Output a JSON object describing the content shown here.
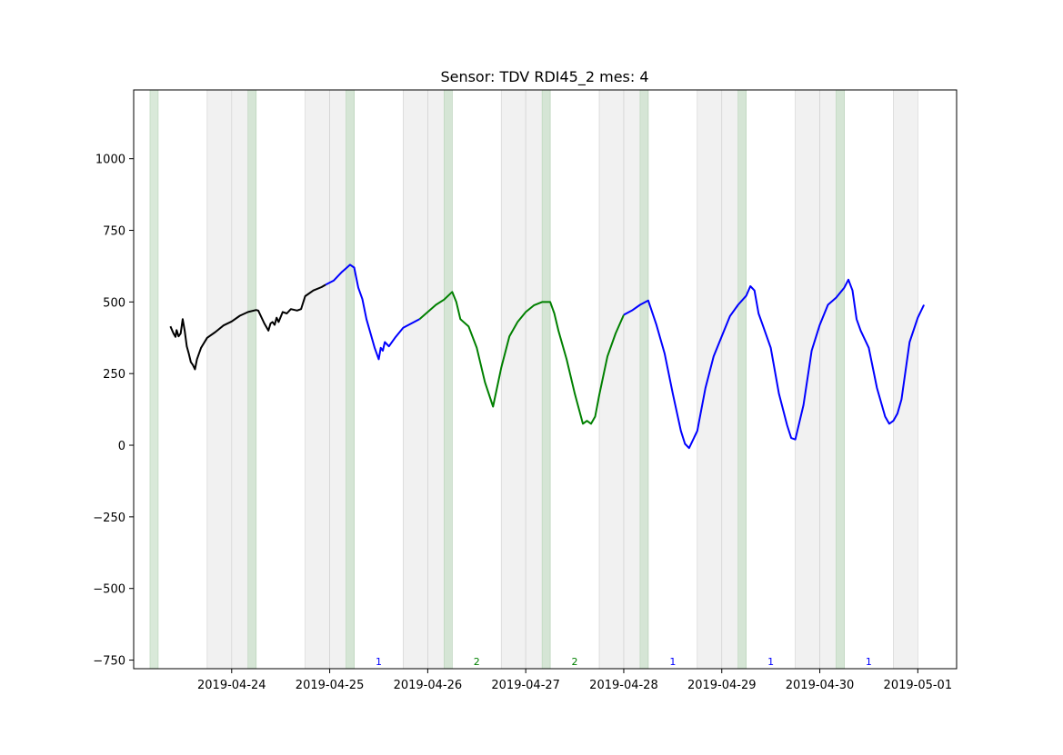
{
  "chart_data": {
    "type": "line",
    "title": "Sensor: TDV RDI45_2 mes: 4",
    "xlabel": "",
    "ylabel": "",
    "xlim": [
      "2019-04-23 00:00",
      "2019-05-01 09:30"
    ],
    "ylim": [
      -780,
      1240
    ],
    "x_ticks": [
      "2019-04-24",
      "2019-04-25",
      "2019-04-26",
      "2019-04-27",
      "2019-04-28",
      "2019-04-29",
      "2019-04-30",
      "2019-05-01"
    ],
    "y_ticks": [
      -750,
      -500,
      -250,
      0,
      250,
      500,
      750,
      1000
    ],
    "grid": false,
    "legend": "none",
    "colors": {
      "unlabeled": "#000000",
      "class_1": "#0000ff",
      "class_2": "#008000",
      "grey_band": "#e6e6e6",
      "green_band": "#c9dfc9"
    },
    "grey_bands": [
      [
        "2019-04-23 18:00",
        "2019-04-24 00:00"
      ],
      [
        "2019-04-24 00:00",
        "2019-04-24 06:00"
      ],
      [
        "2019-04-24 18:00",
        "2019-04-25 00:00"
      ],
      [
        "2019-04-25 00:00",
        "2019-04-25 06:00"
      ],
      [
        "2019-04-25 18:00",
        "2019-04-26 00:00"
      ],
      [
        "2019-04-26 00:00",
        "2019-04-26 06:00"
      ],
      [
        "2019-04-26 18:00",
        "2019-04-27 00:00"
      ],
      [
        "2019-04-27 00:00",
        "2019-04-27 06:00"
      ],
      [
        "2019-04-27 18:00",
        "2019-04-28 00:00"
      ],
      [
        "2019-04-28 00:00",
        "2019-04-28 06:00"
      ],
      [
        "2019-04-28 18:00",
        "2019-04-29 00:00"
      ],
      [
        "2019-04-29 00:00",
        "2019-04-29 06:00"
      ],
      [
        "2019-04-29 18:00",
        "2019-04-30 00:00"
      ],
      [
        "2019-04-30 00:00",
        "2019-04-30 06:00"
      ],
      [
        "2019-04-30 18:00",
        "2019-05-01 00:00"
      ]
    ],
    "green_bands": [
      [
        "2019-04-23 04:00",
        "2019-04-23 06:00"
      ],
      [
        "2019-04-24 04:00",
        "2019-04-24 06:00"
      ],
      [
        "2019-04-25 04:00",
        "2019-04-25 06:00"
      ],
      [
        "2019-04-26 04:00",
        "2019-04-26 06:00"
      ],
      [
        "2019-04-27 04:00",
        "2019-04-27 06:00"
      ],
      [
        "2019-04-28 04:00",
        "2019-04-28 06:00"
      ],
      [
        "2019-04-29 04:00",
        "2019-04-29 06:00"
      ],
      [
        "2019-04-30 04:00",
        "2019-04-30 06:00"
      ]
    ],
    "day_labels": [
      {
        "x": "2019-04-25 12:00",
        "text": "1",
        "class": "class_1"
      },
      {
        "x": "2019-04-26 12:00",
        "text": "2",
        "class": "class_2"
      },
      {
        "x": "2019-04-27 12:00",
        "text": "2",
        "class": "class_2"
      },
      {
        "x": "2019-04-28 12:00",
        "text": "1",
        "class": "class_1"
      },
      {
        "x": "2019-04-29 12:00",
        "text": "1",
        "class": "class_1"
      },
      {
        "x": "2019-04-30 12:00",
        "text": "1",
        "class": "class_1"
      }
    ],
    "series": [
      {
        "class": "unlabeled",
        "points": [
          [
            "2019-04-23 09:00",
            415
          ],
          [
            "2019-04-23 09:45",
            390
          ],
          [
            "2019-04-23 10:15",
            378
          ],
          [
            "2019-04-23 10:30",
            402
          ],
          [
            "2019-04-23 11:00",
            380
          ],
          [
            "2019-04-23 11:30",
            390
          ],
          [
            "2019-04-23 12:00",
            440
          ],
          [
            "2019-04-23 12:30",
            400
          ],
          [
            "2019-04-23 13:00",
            345
          ],
          [
            "2019-04-23 13:30",
            320
          ],
          [
            "2019-04-23 14:00",
            290
          ],
          [
            "2019-04-23 14:30",
            280
          ],
          [
            "2019-04-23 15:00",
            265
          ],
          [
            "2019-04-23 15:30",
            300
          ],
          [
            "2019-04-23 16:30",
            340
          ],
          [
            "2019-04-23 18:00",
            375
          ],
          [
            "2019-04-23 20:00",
            395
          ],
          [
            "2019-04-23 22:00",
            418
          ],
          [
            "2019-04-24 00:00",
            432
          ],
          [
            "2019-04-24 02:00",
            452
          ],
          [
            "2019-04-24 04:00",
            465
          ],
          [
            "2019-04-24 06:00",
            472
          ],
          [
            "2019-04-24 06:30",
            470
          ],
          [
            "2019-04-24 07:00",
            455
          ],
          [
            "2019-04-24 08:00",
            425
          ],
          [
            "2019-04-24 09:00",
            400
          ],
          [
            "2019-04-24 09:30",
            425
          ],
          [
            "2019-04-24 10:00",
            430
          ],
          [
            "2019-04-24 10:30",
            420
          ],
          [
            "2019-04-24 11:00",
            445
          ],
          [
            "2019-04-24 11:30",
            430
          ],
          [
            "2019-04-24 12:30",
            465
          ],
          [
            "2019-04-24 13:30",
            460
          ],
          [
            "2019-04-24 14:30",
            475
          ],
          [
            "2019-04-24 16:00",
            470
          ],
          [
            "2019-04-24 17:00",
            475
          ],
          [
            "2019-04-24 18:00",
            520
          ],
          [
            "2019-04-24 20:00",
            540
          ],
          [
            "2019-04-24 22:00",
            552
          ],
          [
            "2019-04-24 23:00",
            560
          ]
        ]
      },
      {
        "class": "class_1",
        "points": [
          [
            "2019-04-24 23:00",
            560
          ],
          [
            "2019-04-25 01:00",
            575
          ],
          [
            "2019-04-25 03:00",
            605
          ],
          [
            "2019-04-25 05:00",
            630
          ],
          [
            "2019-04-25 06:00",
            620
          ],
          [
            "2019-04-25 07:00",
            550
          ],
          [
            "2019-04-25 08:00",
            510
          ],
          [
            "2019-04-25 09:00",
            440
          ],
          [
            "2019-04-25 10:00",
            390
          ],
          [
            "2019-04-25 11:00",
            340
          ],
          [
            "2019-04-25 12:00",
            300
          ],
          [
            "2019-04-25 12:30",
            340
          ],
          [
            "2019-04-25 13:00",
            330
          ],
          [
            "2019-04-25 13:30",
            360
          ],
          [
            "2019-04-25 14:30",
            345
          ],
          [
            "2019-04-25 16:00",
            375
          ],
          [
            "2019-04-25 18:00",
            410
          ],
          [
            "2019-04-25 20:00",
            425
          ],
          [
            "2019-04-25 22:00",
            440
          ]
        ]
      },
      {
        "class": "class_2",
        "points": [
          [
            "2019-04-25 22:00",
            440
          ],
          [
            "2019-04-26 00:00",
            465
          ],
          [
            "2019-04-26 02:00",
            490
          ],
          [
            "2019-04-26 04:00",
            508
          ],
          [
            "2019-04-26 06:00",
            535
          ],
          [
            "2019-04-26 07:00",
            500
          ],
          [
            "2019-04-26 08:00",
            440
          ],
          [
            "2019-04-26 10:00",
            415
          ],
          [
            "2019-04-26 12:00",
            340
          ],
          [
            "2019-04-26 14:00",
            220
          ],
          [
            "2019-04-26 16:00",
            135
          ],
          [
            "2019-04-26 18:00",
            270
          ],
          [
            "2019-04-26 20:00",
            380
          ],
          [
            "2019-04-26 22:00",
            430
          ],
          [
            "2019-04-27 00:00",
            465
          ],
          [
            "2019-04-27 02:00",
            488
          ],
          [
            "2019-04-27 04:00",
            500
          ],
          [
            "2019-04-27 06:00",
            500
          ],
          [
            "2019-04-27 07:00",
            460
          ],
          [
            "2019-04-27 08:00",
            400
          ],
          [
            "2019-04-27 10:00",
            300
          ],
          [
            "2019-04-27 12:00",
            180
          ],
          [
            "2019-04-27 14:00",
            75
          ],
          [
            "2019-04-27 15:00",
            85
          ],
          [
            "2019-04-27 16:00",
            75
          ],
          [
            "2019-04-27 17:00",
            100
          ],
          [
            "2019-04-27 18:00",
            175
          ],
          [
            "2019-04-27 20:00",
            310
          ],
          [
            "2019-04-27 22:00",
            390
          ],
          [
            "2019-04-28 00:00",
            455
          ]
        ]
      },
      {
        "class": "class_1",
        "points": [
          [
            "2019-04-28 00:00",
            455
          ],
          [
            "2019-04-28 02:00",
            470
          ],
          [
            "2019-04-28 04:00",
            490
          ],
          [
            "2019-04-28 06:00",
            505
          ],
          [
            "2019-04-28 08:00",
            420
          ],
          [
            "2019-04-28 10:00",
            320
          ],
          [
            "2019-04-28 12:00",
            180
          ],
          [
            "2019-04-28 14:00",
            50
          ],
          [
            "2019-04-28 15:00",
            5
          ],
          [
            "2019-04-28 16:00",
            -10
          ],
          [
            "2019-04-28 18:00",
            50
          ],
          [
            "2019-04-28 20:00",
            200
          ],
          [
            "2019-04-28 22:00",
            310
          ],
          [
            "2019-04-29 00:00",
            380
          ],
          [
            "2019-04-29 02:00",
            450
          ],
          [
            "2019-04-29 04:00",
            490
          ],
          [
            "2019-04-29 06:00",
            522
          ],
          [
            "2019-04-29 07:00",
            555
          ],
          [
            "2019-04-29 08:00",
            540
          ],
          [
            "2019-04-29 09:00",
            460
          ],
          [
            "2019-04-29 10:00",
            420
          ],
          [
            "2019-04-29 12:00",
            340
          ],
          [
            "2019-04-29 14:00",
            180
          ],
          [
            "2019-04-29 16:00",
            70
          ],
          [
            "2019-04-29 17:00",
            25
          ],
          [
            "2019-04-29 18:00",
            20
          ],
          [
            "2019-04-29 20:00",
            140
          ],
          [
            "2019-04-29 22:00",
            330
          ],
          [
            "2019-04-30 00:00",
            420
          ],
          [
            "2019-04-30 02:00",
            490
          ],
          [
            "2019-04-30 04:00",
            515
          ],
          [
            "2019-04-30 06:00",
            550
          ],
          [
            "2019-04-30 07:00",
            578
          ],
          [
            "2019-04-30 08:00",
            540
          ],
          [
            "2019-04-30 09:00",
            440
          ],
          [
            "2019-04-30 10:00",
            400
          ],
          [
            "2019-04-30 12:00",
            340
          ],
          [
            "2019-04-30 14:00",
            200
          ],
          [
            "2019-04-30 16:00",
            100
          ],
          [
            "2019-04-30 17:00",
            75
          ],
          [
            "2019-04-30 18:00",
            85
          ],
          [
            "2019-04-30 19:00",
            110
          ],
          [
            "2019-04-30 20:00",
            160
          ],
          [
            "2019-04-30 22:00",
            360
          ],
          [
            "2019-05-01 00:00",
            445
          ],
          [
            "2019-05-01 01:30",
            490
          ]
        ]
      }
    ]
  }
}
